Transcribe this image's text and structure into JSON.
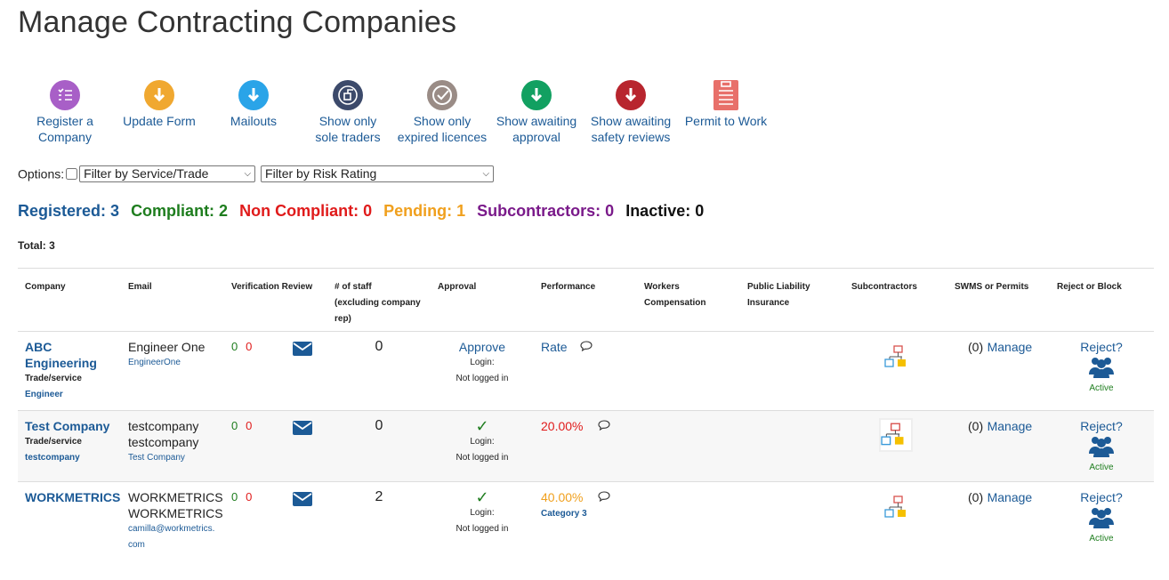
{
  "page": {
    "title": "Manage Contracting Companies"
  },
  "toolbar": [
    {
      "icon": "checklist-icon",
      "color": "#a85fc7",
      "label1": "Register a",
      "label2": "Company"
    },
    {
      "icon": "download-arrow-icon",
      "color": "#f0a830",
      "label1": "Update Form",
      "label2": ""
    },
    {
      "icon": "download-arrow-icon",
      "color": "#2aa4e8",
      "label1": "Mailouts",
      "label2": ""
    },
    {
      "icon": "sole-trader-icon",
      "color": "#3c4a6b",
      "label1": "Show only",
      "label2": "sole traders"
    },
    {
      "icon": "checkmark-circle-icon",
      "color": "#9a8c86",
      "label1": "Show only",
      "label2": "expired licences"
    },
    {
      "icon": "download-arrow-icon",
      "color": "#12a061",
      "label1": "Show awaiting",
      "label2": "approval"
    },
    {
      "icon": "download-arrow-icon",
      "color": "#b8252e",
      "label1": "Show awaiting",
      "label2": "safety reviews"
    },
    {
      "icon": "clipboard-icon",
      "color": "#e8706a",
      "label1": "Permit to Work",
      "label2": ""
    }
  ],
  "options": {
    "label": "Options:",
    "service_filter": "Filter by Service/Trade",
    "risk_filter": "Filter by Risk Rating"
  },
  "counts": {
    "registered": "Registered: 3",
    "compliant": "Compliant: 2",
    "non_compliant": "Non Compliant: 0",
    "pending": "Pending: 1",
    "subcontractors": "Subcontractors: 0",
    "inactive": "Inactive: 0"
  },
  "total": "Total: 3",
  "table": {
    "headers": {
      "company": "Company",
      "email": "Email",
      "verification": "Verification Review",
      "staff1": "# of staff",
      "staff2": "(excluding company",
      "staff3": "rep)",
      "approval": "Approval",
      "performance": "Performance",
      "workers1": "Workers",
      "workers2": "Compensation",
      "liability1": "Public Liability",
      "liability2": "Insurance",
      "subcontractors": "Subcontractors",
      "swms": "SWMS or Permits",
      "reject": "Reject or Block"
    },
    "rows": [
      {
        "company1": "ABC",
        "company2": "Engineering",
        "trade_label": "Trade/service",
        "trade_value": "Engineer",
        "email1": "Engineer One",
        "email2": "",
        "email_link": "EngineerOne",
        "ver_green": "0",
        "ver_red": "0",
        "staff": "0",
        "approve": "Approve",
        "login_label": "Login:",
        "login_status": "Not logged in",
        "performance": "Rate",
        "category": "",
        "swms_count": "(0)",
        "manage": "Manage",
        "reject": "Reject?",
        "status": "Active"
      },
      {
        "company1": "Test Company",
        "company2": "",
        "trade_label": "Trade/service",
        "trade_value": "testcompany",
        "email1": "testcompany",
        "email2": "testcompany",
        "email_link": "Test Company",
        "ver_green": "0",
        "ver_red": "0",
        "staff": "0",
        "approve": "✓",
        "login_label": "Login:",
        "login_status": "Not logged in",
        "performance": "20.00%",
        "category": "",
        "swms_count": "(0)",
        "manage": "Manage",
        "reject": "Reject?",
        "status": "Active"
      },
      {
        "company1": "WORKMETRICS",
        "company2": "",
        "trade_label": "",
        "trade_value": "",
        "email1": "WORKMETRICS",
        "email2": "WORKMETRICS",
        "email_link": "camilla@workmetrics.",
        "email_link2": "com",
        "ver_green": "0",
        "ver_red": "0",
        "staff": "2",
        "approve": "✓",
        "login_label": "Login:",
        "login_status": "Not logged in",
        "performance": "40.00%",
        "category": "Category 3",
        "swms_count": "(0)",
        "manage": "Manage",
        "reject": "Reject?",
        "status": "Active"
      }
    ]
  }
}
